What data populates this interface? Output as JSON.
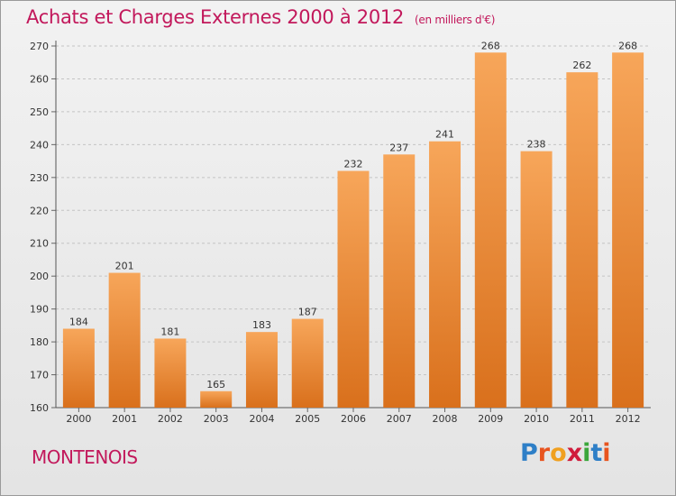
{
  "title": "Achats et Charges Externes 2000 à 2012",
  "unit": "(en milliers d'€)",
  "commune": "MONTENOIS",
  "brand": {
    "letters": [
      "P",
      "r",
      "o",
      "x",
      "i",
      "t",
      "i"
    ],
    "colors": [
      "#2e7fc7",
      "#e8541f",
      "#f0a020",
      "#d01c3c",
      "#3aa63a",
      "#2e7fc7",
      "#e8541f"
    ]
  },
  "colors": {
    "title": "#c2185b",
    "bar_top": "#f7a65a",
    "bar_bottom": "#d9701c",
    "grid": "#c4c4c4"
  },
  "chart_data": {
    "type": "bar",
    "categories": [
      "2000",
      "2001",
      "2002",
      "2003",
      "2004",
      "2005",
      "2006",
      "2007",
      "2008",
      "2009",
      "2010",
      "2011",
      "2012"
    ],
    "values": [
      184,
      201,
      181,
      165,
      183,
      187,
      232,
      237,
      241,
      268,
      238,
      262,
      268
    ],
    "ylim": [
      160,
      270
    ],
    "yticks": [
      160,
      170,
      180,
      190,
      200,
      210,
      220,
      230,
      240,
      250,
      260,
      270
    ],
    "grid": true,
    "data_labels": true
  }
}
